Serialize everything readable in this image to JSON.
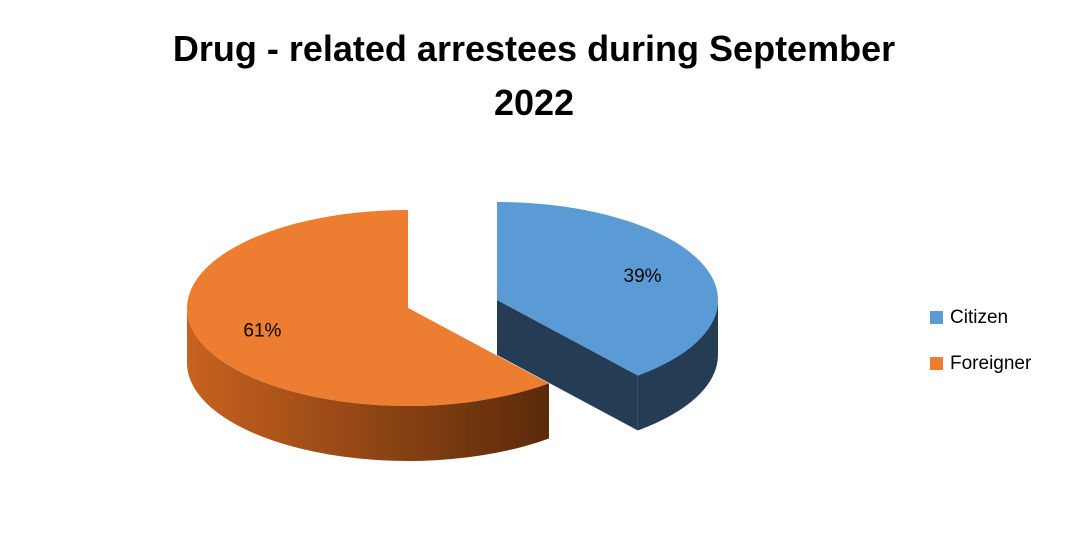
{
  "chart_data": {
    "type": "pie",
    "title": "Drug - related arrestees during September 2022",
    "categories": [
      "Citizen",
      "Foreigner"
    ],
    "values": [
      39,
      61
    ],
    "value_labels": [
      "39%",
      "61%"
    ],
    "colors": [
      "#5b9bd5",
      "#ed7d31"
    ],
    "legend": "right"
  }
}
